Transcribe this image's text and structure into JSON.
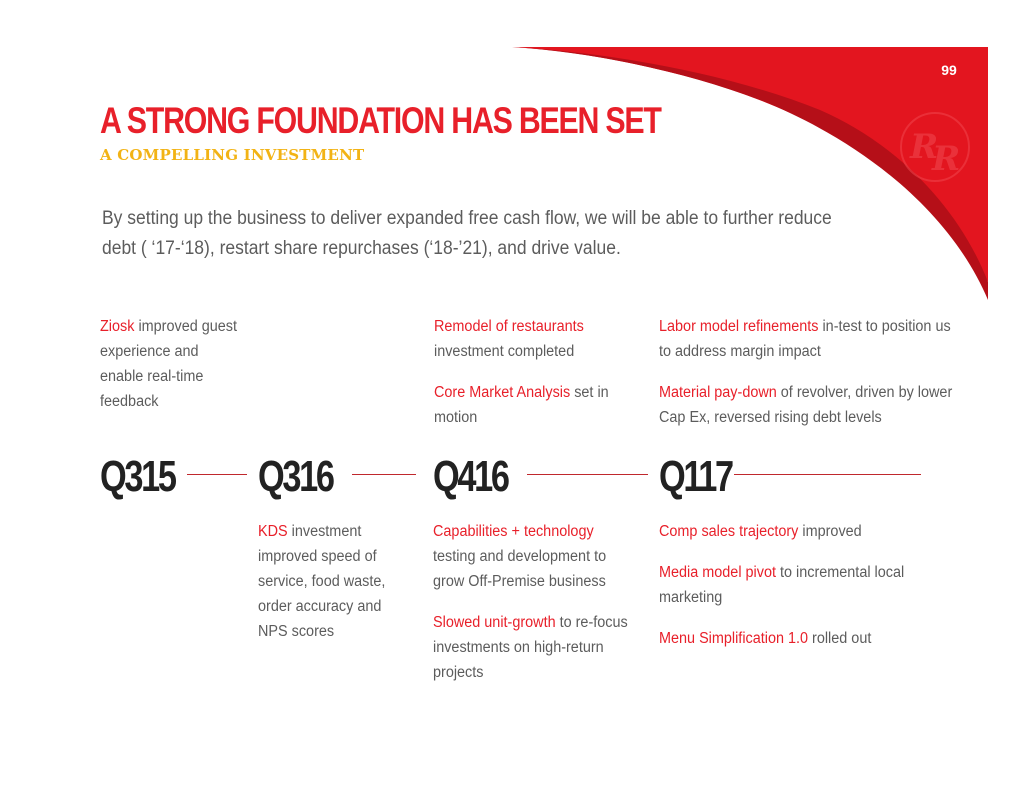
{
  "page": {
    "number": "99",
    "title": "A STRONG FOUNDATION HAS BEEN SET",
    "subtitle": "A COMPELLING INVESTMENT",
    "intro": "By setting up the business to deliver expanded free cash flow, we will be able to further reduce debt ( ‘17-‘18), restart share repurchases (‘18-’21), and drive value.",
    "logo_icon": "red-robin-rr-logo",
    "colors": {
      "accent": "#e8202a",
      "subtitle": "#f2b315",
      "text": "#5c5c5c",
      "quarter": "#222222"
    }
  },
  "timeline": {
    "quarters": [
      "Q315",
      "Q316",
      "Q416",
      "Q117"
    ],
    "above": {
      "q315": [
        {
          "hl": "Ziosk",
          "text": " improved guest experience and enable real-time feedback"
        }
      ],
      "q416": [
        {
          "hl": "Remodel of restaurants",
          "text": " investment completed"
        },
        {
          "hl": "Core Market Analysis",
          "text": " set in motion"
        }
      ],
      "q117": [
        {
          "hl": "Labor model refinements",
          "text": " in-test to position us to address margin impact"
        },
        {
          "hl": "Material pay-down",
          "text": " of revolver, driven by lower Cap Ex, reversed rising debt levels"
        }
      ]
    },
    "below": {
      "q316": [
        {
          "hl": "KDS",
          "text": " investment improved speed of service, food waste, order accuracy and NPS scores"
        }
      ],
      "q416": [
        {
          "hl": "Capabilities + technology",
          "text": " testing and development to grow Off-Premise business"
        },
        {
          "hl": "Slowed unit-growth",
          "text": " to re-focus investments on high-return projects"
        }
      ],
      "q117": [
        {
          "hl": "Comp sales trajectory",
          "text": " improved"
        },
        {
          "hl": "Media model pivot",
          "text": " to incremental local marketing"
        },
        {
          "hl": "Menu Simplification 1.0",
          "text": " rolled out"
        }
      ]
    }
  }
}
